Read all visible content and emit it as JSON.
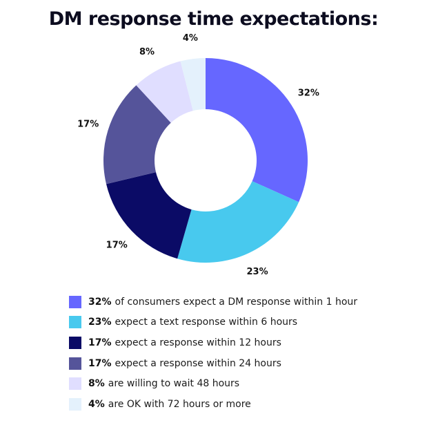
{
  "chart_data": {
    "type": "pie",
    "title": "DM response time expectations:",
    "donut": true,
    "slices": [
      {
        "value": 32,
        "label": "32%",
        "color": "#6667ff"
      },
      {
        "value": 23,
        "label": "23%",
        "color": "#48c9ee"
      },
      {
        "value": 17,
        "label": "17%",
        "color": "#0b0b66"
      },
      {
        "value": 17,
        "label": "17%",
        "color": "#55549a"
      },
      {
        "value": 8,
        "label": "8%",
        "color": "#e0deff"
      },
      {
        "value": 4,
        "label": "4%",
        "color": "#e4f1fc"
      }
    ],
    "legend_placement": "bottom",
    "legend": [
      {
        "pct": "32%",
        "text": "of consumers expect a DM response within 1 hour",
        "color": "#6667ff"
      },
      {
        "pct": "23%",
        "text": "expect a text response within 6 hours",
        "color": "#48c9ee"
      },
      {
        "pct": "17%",
        "text": "expect a response within 12 hours",
        "color": "#0b0b66"
      },
      {
        "pct": "17%",
        "text": "expect a response within 24 hours",
        "color": "#55549a"
      },
      {
        "pct": "8%",
        "text": "are willing to wait 48 hours",
        "color": "#e0deff"
      },
      {
        "pct": "4%",
        "text": "are OK with 72 hours or more",
        "color": "#e4f1fc"
      }
    ]
  }
}
